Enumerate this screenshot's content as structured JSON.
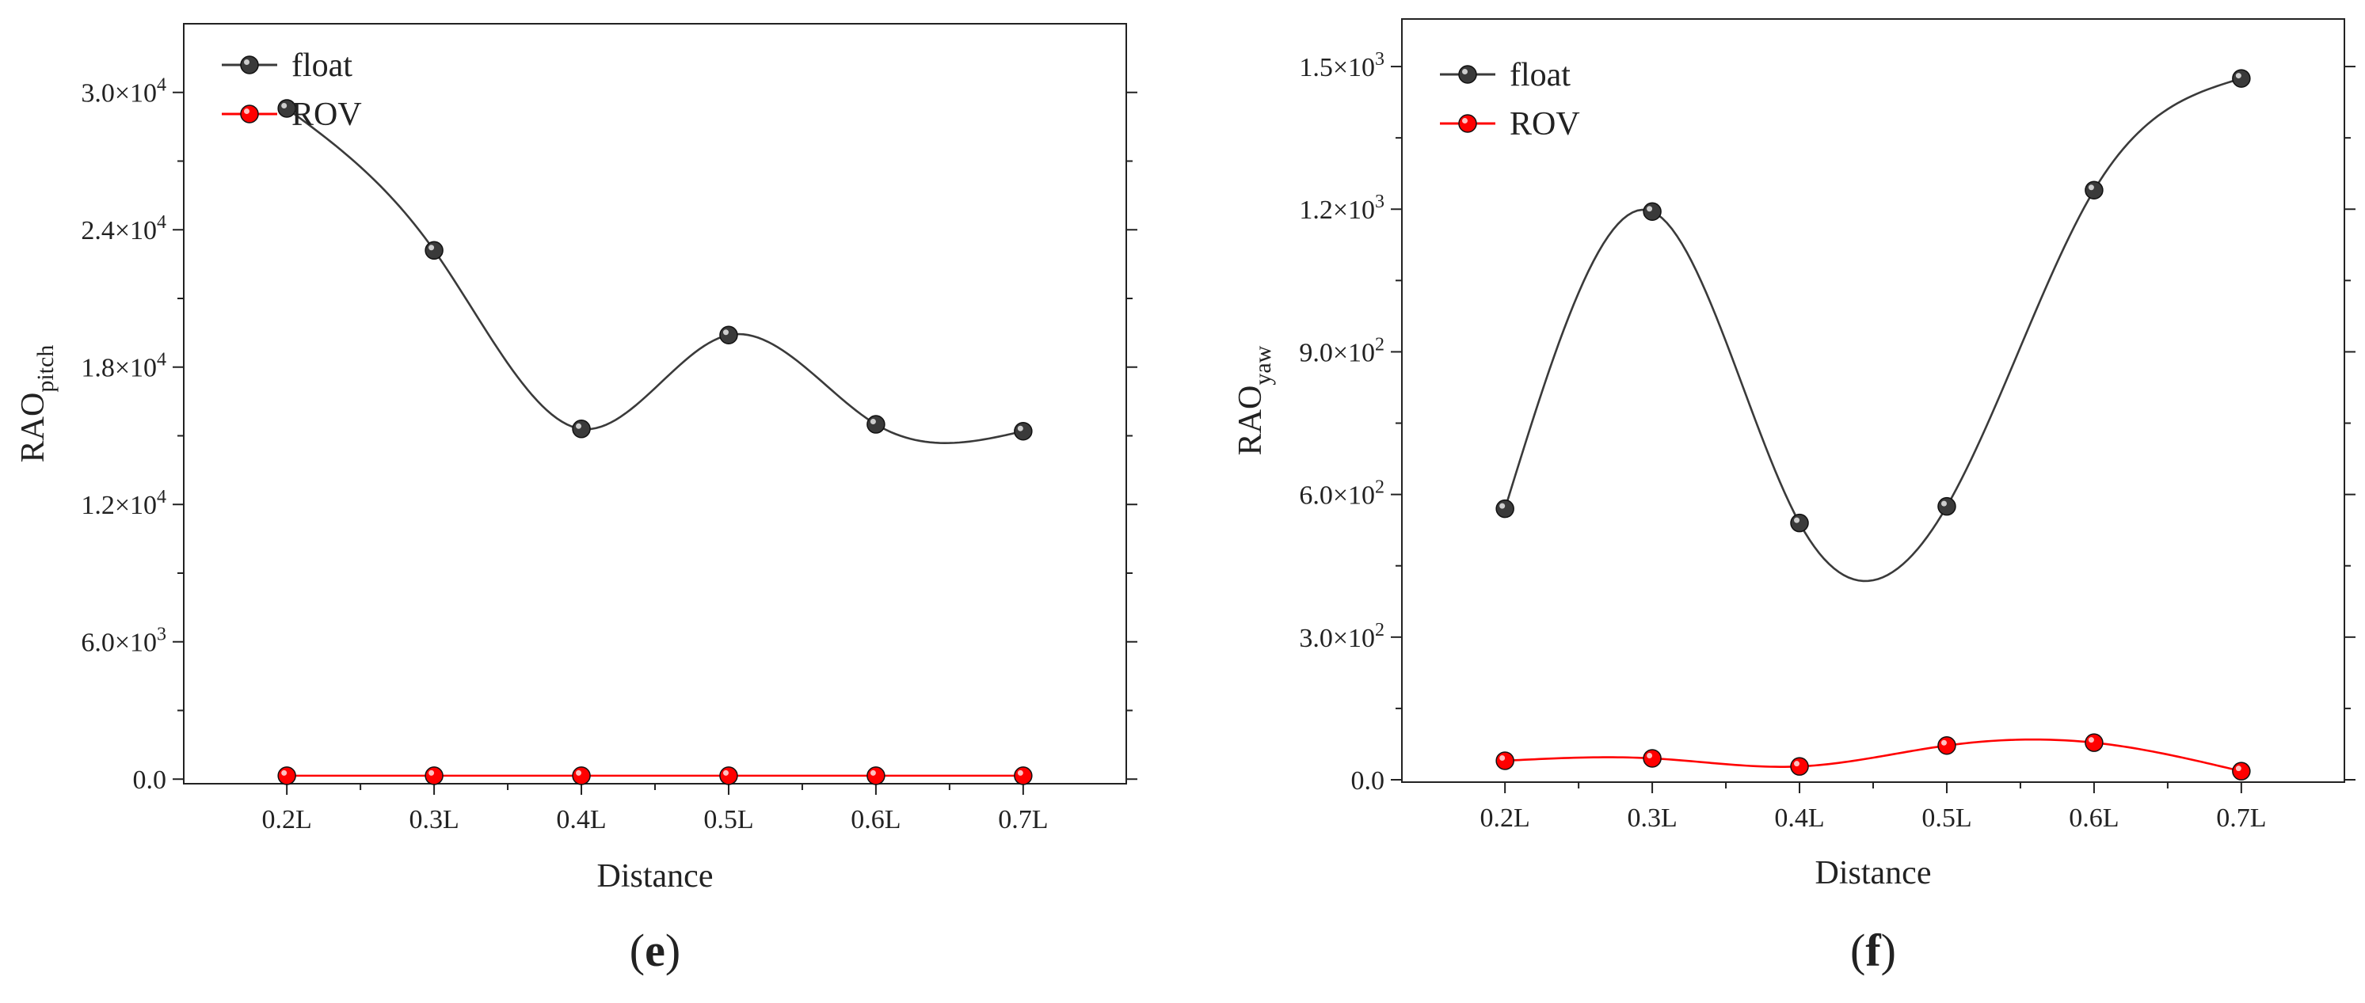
{
  "chart_data": [
    {
      "type": "line",
      "panel_label": "e",
      "title": "",
      "xlabel": "Distance",
      "ylabel_main": "RAO",
      "ylabel_sub": "pitch",
      "categories": [
        "0.2L",
        "0.3L",
        "0.4L",
        "0.5L",
        "0.6L",
        "0.7L"
      ],
      "ylim": [
        -200,
        33000
      ],
      "yticks": [
        0,
        6000,
        12000,
        18000,
        24000,
        30000
      ],
      "ytick_labels": [
        "0.0",
        "6.0×10^3",
        "1.2×10^4",
        "1.8×10^4",
        "2.4×10^4",
        "3.0×10^4"
      ],
      "legend_position": "top-left",
      "series": [
        {
          "name": "float",
          "color": "#3a3a3a",
          "values": [
            29300,
            23100,
            15300,
            19400,
            15500,
            15200
          ]
        },
        {
          "name": "ROV",
          "color": "#ff0000",
          "values": [
            150,
            150,
            150,
            150,
            150,
            150
          ]
        }
      ]
    },
    {
      "type": "line",
      "panel_label": "f",
      "title": "",
      "xlabel": "Distance",
      "ylabel_main": "RAO",
      "ylabel_sub": "yaw",
      "categories": [
        "0.2L",
        "0.3L",
        "0.4L",
        "0.5L",
        "0.6L",
        "0.7L"
      ],
      "ylim": [
        -5,
        1600
      ],
      "yticks": [
        0,
        300,
        600,
        900,
        1200,
        1500
      ],
      "ytick_labels": [
        "0.0",
        "3.0×10^2",
        "6.0×10^2",
        "9.0×10^2",
        "1.2×10^3",
        "1.5×10^3"
      ],
      "legend_position": "top-left",
      "series": [
        {
          "name": "float",
          "color": "#3a3a3a",
          "values": [
            570,
            1195,
            540,
            575,
            1240,
            1475
          ]
        },
        {
          "name": "ROV",
          "color": "#ff0000",
          "values": [
            40,
            45,
            28,
            72,
            78,
            18
          ]
        }
      ]
    }
  ]
}
